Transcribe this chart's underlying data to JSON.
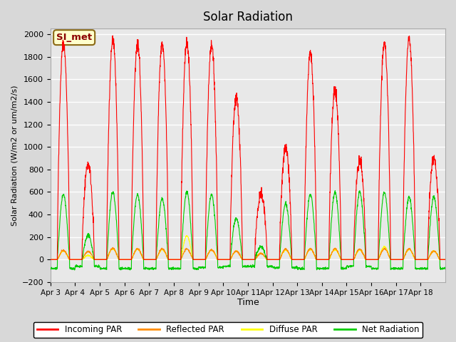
{
  "title": "Solar Radiation",
  "ylabel": "Solar Radiation (W/m2 or um/m2/s)",
  "xlabel": "Time",
  "ylim": [
    -200,
    2050
  ],
  "yticks": [
    -200,
    0,
    200,
    400,
    600,
    800,
    1000,
    1200,
    1400,
    1600,
    1800,
    2000
  ],
  "background_color": "#d8d8d8",
  "plot_bg_color": "#e8e8e8",
  "annotation_text": "SI_met",
  "annotation_color": "#8B0000",
  "annotation_bg": "#ffffcc",
  "annotation_border": "#8B6914",
  "colors": {
    "incoming": "#ff0000",
    "reflected": "#ff8c00",
    "diffuse": "#ffff00",
    "net": "#00cc00"
  },
  "legend_labels": [
    "Incoming PAR",
    "Reflected PAR",
    "Diffuse PAR",
    "Net Radiation"
  ],
  "x_tick_labels": [
    "Apr 3",
    "Apr 4",
    "Apr 5",
    "Apr 6",
    "Apr 7",
    "Apr 8",
    "Apr 9",
    "Apr 10",
    "Apr 11",
    "Apr 12",
    "Apr 13",
    "Apr 14",
    "Apr 15",
    "Apr 16",
    "Apr 17",
    "Apr 18"
  ],
  "n_days": 16,
  "samples_per_day": 144
}
